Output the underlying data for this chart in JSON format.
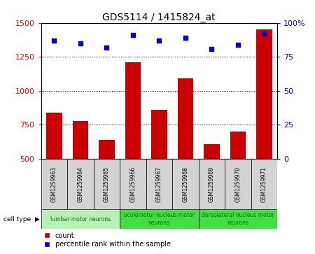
{
  "title": "GDS5114 / 1415824_at",
  "samples": [
    "GSM1259963",
    "GSM1259964",
    "GSM1259965",
    "GSM1259966",
    "GSM1259967",
    "GSM1259968",
    "GSM1259969",
    "GSM1259970",
    "GSM1259971"
  ],
  "counts": [
    840,
    775,
    640,
    1210,
    860,
    1090,
    610,
    700,
    1450
  ],
  "percentile_ranks": [
    87,
    85,
    82,
    91,
    87,
    89,
    81,
    84,
    92
  ],
  "ylim_left": [
    500,
    1500
  ],
  "ylim_right": [
    0,
    100
  ],
  "yticks_left": [
    500,
    750,
    1000,
    1250,
    1500
  ],
  "yticks_right": [
    0,
    25,
    50,
    75,
    100
  ],
  "ytick_labels_right": [
    "0",
    "25",
    "50",
    "75",
    "100%"
  ],
  "bar_color": "#CC0000",
  "scatter_color": "#0000CC",
  "background_color": "#ffffff",
  "sample_box_color": "#D3D3D3",
  "cell_type_colors": [
    "#b8f0b8",
    "#44dd44",
    "#44dd44"
  ],
  "cell_type_labels": [
    "lumbar motor neurons",
    "oculomotor nucleus motor\nneurons",
    "dorsolateral nucleus motor\nneurons"
  ],
  "cell_type_ranges": [
    [
      0,
      3
    ],
    [
      3,
      6
    ],
    [
      6,
      9
    ]
  ],
  "cell_type_text_color": "#007700",
  "title_fontsize": 10,
  "bar_width": 0.6,
  "gridline_ticks": [
    750,
    1000,
    1250
  ]
}
